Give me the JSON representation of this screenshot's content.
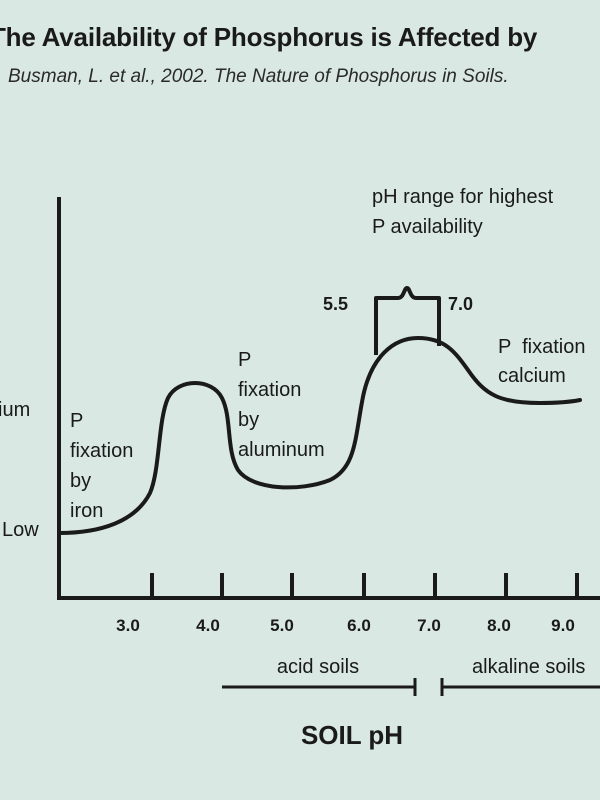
{
  "title": "The Availability of Phosphorus is Affected by",
  "source": "Busman, L. et al., 2002. The Nature of Phosphorus in Soils.",
  "y_labels": {
    "medium": "ium",
    "low": "Low"
  },
  "x_ticks": [
    "3.0",
    "4.0",
    "5.0",
    "6.0",
    "7.0",
    "8.0",
    "9.0"
  ],
  "annotations": {
    "iron": [
      "P",
      "fixation",
      "by",
      "iron"
    ],
    "aluminum": [
      "P",
      "fixation",
      "by",
      "aluminum"
    ],
    "calcium": [
      "P  fixation",
      "calcium"
    ],
    "optimal_range": [
      "pH range for highest",
      "P availability"
    ],
    "range_low": "5.5",
    "range_high": "7.0"
  },
  "soil_classes": {
    "acid": "acid soils",
    "alkaline": "alkaline soils"
  },
  "x_axis_title": "SOIL pH",
  "colors": {
    "background": "#d9e8e3",
    "ink": "#1a1a1a"
  }
}
